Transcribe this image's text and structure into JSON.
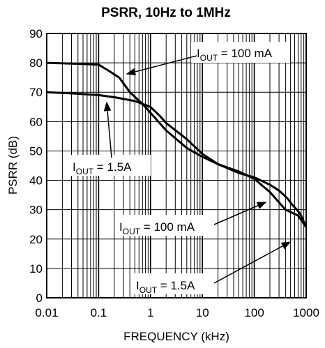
{
  "chart_data": {
    "type": "line",
    "title": "PSRR, 10Hz to 1MHz",
    "xlabel": "FREQUENCY (kHz)",
    "ylabel": "PSRR (dB)",
    "xscale": "log",
    "xlim": [
      0.01,
      1000
    ],
    "ylim": [
      0,
      90
    ],
    "grid": true,
    "x_ticks": [
      "0.01",
      "0.1",
      "1",
      "10",
      "100",
      "1000"
    ],
    "y_ticks": [
      "0",
      "10",
      "20",
      "30",
      "40",
      "50",
      "60",
      "70",
      "80",
      "90"
    ],
    "series": [
      {
        "name": "IOUT = 100 mA",
        "x": [
          0.01,
          0.05,
          0.1,
          0.15,
          0.25,
          0.4,
          0.7,
          1,
          2,
          5,
          10,
          20,
          50,
          100,
          200,
          400,
          700,
          1000
        ],
        "y": [
          80,
          79.6,
          79.4,
          77.5,
          75,
          70,
          66,
          63,
          57,
          51,
          48,
          45.5,
          43,
          40.5,
          36,
          30,
          28,
          24
        ]
      },
      {
        "name": "IOUT = 1.5A",
        "x": [
          0.01,
          0.03,
          0.1,
          0.2,
          0.5,
          1,
          1.5,
          2,
          5,
          10,
          20,
          50,
          100,
          200,
          300,
          400,
          450,
          550,
          700,
          800,
          1000
        ],
        "y": [
          70,
          69.6,
          69,
          68.3,
          67,
          65,
          62,
          59.5,
          54,
          49,
          45.5,
          42.5,
          41,
          38.5,
          36.5,
          34.5,
          33.5,
          31.5,
          29.5,
          28,
          24
        ]
      }
    ],
    "annotations": [
      {
        "main": "I",
        "sub": "OUT",
        "rest": " = 100 mA"
      },
      {
        "main": "I",
        "sub": "OUT",
        "rest": " = 1.5A"
      },
      {
        "main": "I",
        "sub": "OUT",
        "rest": " = 100 mA"
      },
      {
        "main": "I",
        "sub": "OUT",
        "rest": " = 1.5A"
      }
    ]
  }
}
